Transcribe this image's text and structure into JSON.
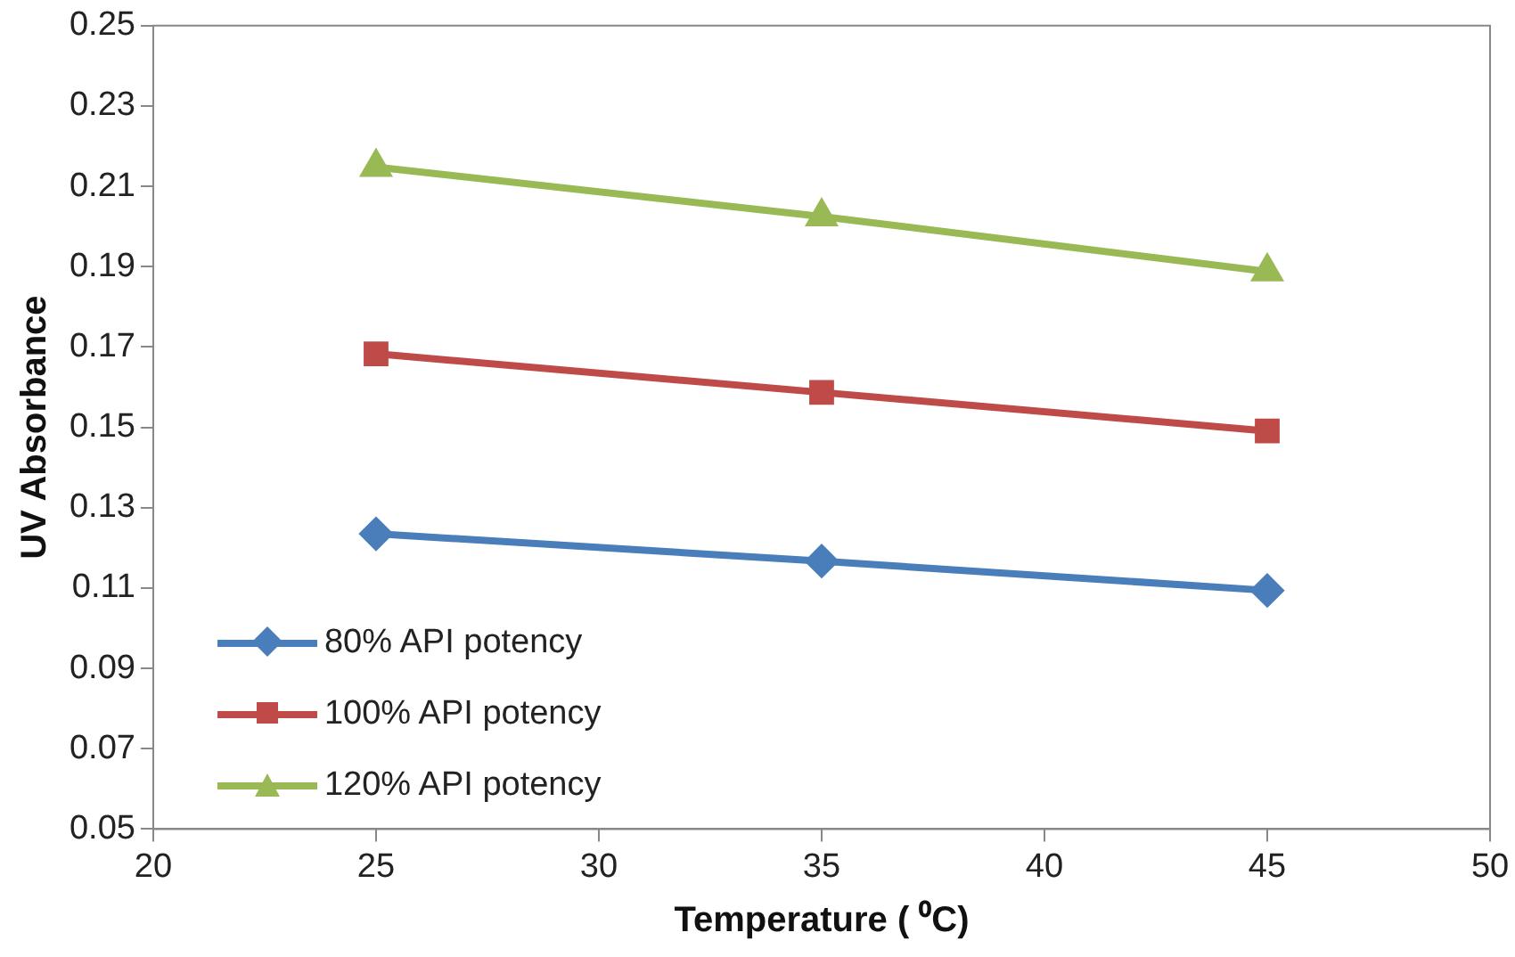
{
  "chart_data": {
    "type": "line",
    "xlabel": "Temperature ( ⁰C)",
    "ylabel": "UV Absorbance",
    "x": [
      25,
      35,
      45
    ],
    "series": [
      {
        "name": "80% API potency",
        "color": "#4a7ebb",
        "marker": "diamond",
        "values": [
          0.1235,
          0.1167,
          0.1094
        ]
      },
      {
        "name": "100% API potency",
        "color": "#be4b48",
        "marker": "square",
        "values": [
          0.1683,
          0.1587,
          0.1491
        ]
      },
      {
        "name": "120% API potency",
        "color": "#98b954",
        "marker": "triangle",
        "values": [
          0.2148,
          0.2025,
          0.1888
        ]
      }
    ],
    "xlim": [
      20,
      50
    ],
    "xticks": [
      20,
      25,
      30,
      35,
      40,
      45,
      50
    ],
    "ylim": [
      0.05,
      0.25
    ],
    "yticks": [
      0.05,
      0.07,
      0.09,
      0.11,
      0.13,
      0.15,
      0.17,
      0.19,
      0.21,
      0.23,
      0.25
    ],
    "grid": false,
    "legend": "bottom left",
    "line_style": "solid"
  }
}
